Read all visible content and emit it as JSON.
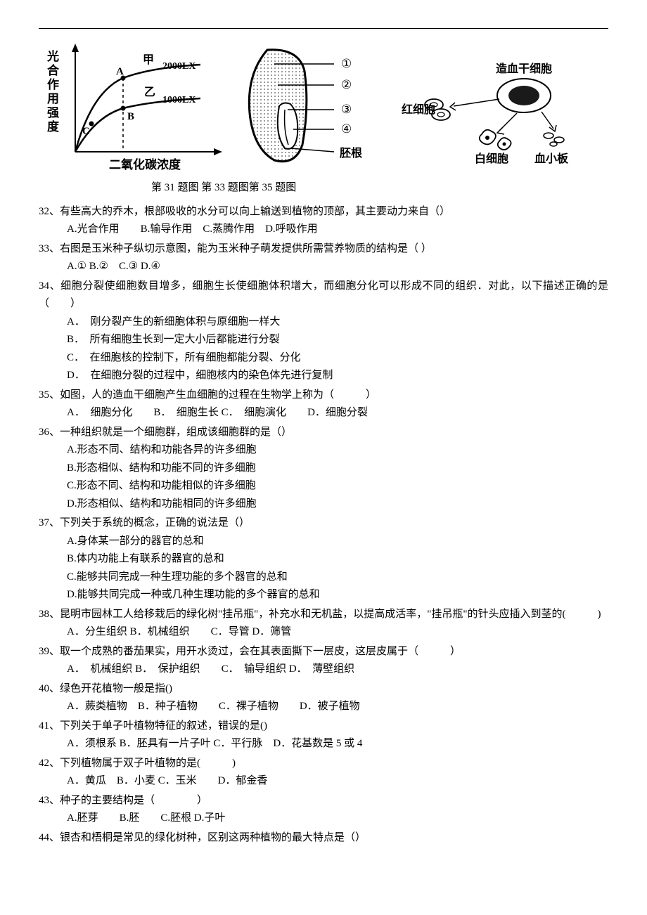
{
  "figures": {
    "fig31": {
      "y_axis_label": "光合作用强度",
      "x_axis_label": "二氧化碳浓度",
      "curve_top_label": "甲",
      "top_value": "2000LX",
      "curve_bottom_label": "乙",
      "bottom_value": "1000LX",
      "points": [
        "A",
        "B",
        "C"
      ],
      "axis_color": "#000000",
      "line_width": 2,
      "text_color": "#000000",
      "bg_color": "#ffffff"
    },
    "fig33": {
      "labels": [
        "①",
        "②",
        "③",
        "④"
      ],
      "root_label": "胚根",
      "outline_color": "#000000",
      "fill_pattern_color": "#898989"
    },
    "fig35": {
      "stem_label": "造血干细胞",
      "cell_labels": [
        "红细胞",
        "白细胞",
        "血小板"
      ],
      "text_color": "#000000",
      "stem_color": "#1a1a1a",
      "rbc_color": "#d0d0d0",
      "wbc_color": "#e8e8e8",
      "plt_color": "#b0b0b0"
    },
    "caption": "第 31 题图  第 33 题图第 35 题图"
  },
  "questions": [
    {
      "num": "32",
      "stem": "有些高大的乔木，根部吸收的水分可以向上输送到植物的顶部，其主要动力来自（）",
      "options_inline": "A.光合作用　　B.输导作用　C.蒸腾作用　D.呼吸作用"
    },
    {
      "num": "33",
      "stem": "右图是玉米种子纵切示意图，能为玉米种子萌发提供所需营养物质的结构是（  ）",
      "options_inline": "A.① B.②　C.③ D.④"
    },
    {
      "num": "34",
      "stem": "细胞分裂使细胞数目增多，细胞生长使细胞体积增大，而细胞分化可以形成不同的组织．对此，以下描述正确的是（　　）",
      "options_block": [
        "A．　刚分裂产生的新细胞体积与原细胞一样大",
        "B．　所有细胞生长到一定大小后都能进行分裂",
        "C．　在细胞核的控制下，所有细胞都能分裂、分化",
        "D．　在细胞分裂的过程中，细胞核内的染色体先进行复制"
      ]
    },
    {
      "num": "35",
      "stem": "如图，人的造血干细胞产生血细胞的过程在生物学上称为（　　　）",
      "options_inline": "A．　细胞分化　　B．　细胞生长 C．　细胞演化　　D．细胞分裂"
    },
    {
      "num": "36",
      "stem": "一种组织就是一个细胞群，组成该细胞群的是（）",
      "options_block": [
        "A.形态不同、结构和功能各异的许多细胞",
        "B.形态相似、结构和功能不同的许多细胞",
        "C.形态不同、结构和功能相似的许多细胞",
        "D.形态相似、结构和功能相同的许多细胞"
      ]
    },
    {
      "num": "37",
      "stem": "下列关于系统的概念，正确的说法是（）",
      "options_block": [
        "A.身体某一部分的器官的总和",
        "B.体内功能上有联系的器官的总和",
        "C.能够共同完成一种生理功能的多个器官的总和",
        "D.能够共同完成一种或几种生理功能的多个器官的总和"
      ]
    },
    {
      "num": "38",
      "stem": "昆明市园林工人给移栽后的绿化树\"挂吊瓶\"，补充水和无机盐，以提高成活率，\"挂吊瓶\"的针头应插入到茎的(　　　)",
      "options_inline": "A．分生组织 B．机械组织　　C．导管 D．筛管"
    },
    {
      "num": "39",
      "stem": "取一个成熟的番茄果实，用开水烫过，会在其表面撕下一层皮，这层皮属于（　　　）",
      "options_inline": "A．　机械组织 B．　保护组织　　C．　输导组织 D．　薄壁组织"
    },
    {
      "num": "40",
      "stem": "绿色开花植物一般是指()",
      "options_inline": "A．蕨类植物　B．种子植物　　C．裸子植物　　D．被子植物"
    },
    {
      "num": "41",
      "stem": "下列关于单子叶植物特征的叙述，错误的是()",
      "options_inline": "A．须根系 B．胚具有一片子叶 C．平行脉　D．花基数是 5 或 4"
    },
    {
      "num": "42",
      "stem": "下列植物属于双子叶植物的是(　　　)",
      "options_inline": "A．黄瓜　B．小麦 C．玉米　　D．郁金香"
    },
    {
      "num": "43",
      "stem": "种子的主要结构是（　　　　）",
      "options_inline": "A.胚芽　　B.胚　　C.胚根 D.子叶"
    },
    {
      "num": "44",
      "stem": "银杏和梧桐是常见的绿化树种，区别这两种植物的最大特点是（）"
    }
  ]
}
